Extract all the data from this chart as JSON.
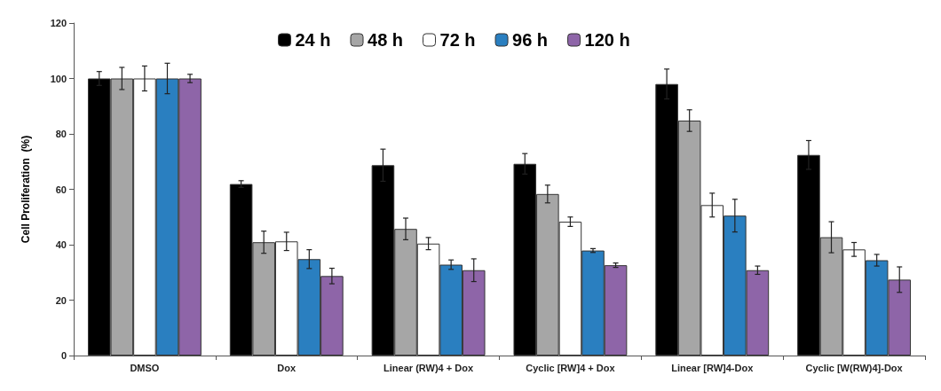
{
  "chart_data": {
    "type": "bar",
    "ylabel": "Cell Proliferation  (%)",
    "categories": [
      "DMSO",
      "Dox",
      "Linear (RW)4 + Dox",
      "Cyclic [RW]4 + Dox",
      "Linear [RW]4-Dox",
      "Cyclic [W(RW)4]-Dox"
    ],
    "ylim": [
      0,
      120
    ],
    "yticks": [
      0,
      20,
      40,
      60,
      80,
      100,
      120
    ],
    "grid": false,
    "legend": "top",
    "series": [
      {
        "name": "24 h",
        "color": "#000000",
        "values": [
          100,
          61.9,
          68.7,
          69.2,
          98.0,
          72.4
        ],
        "errors": [
          2.5,
          1.2,
          5.8,
          3.7,
          5.4,
          5.2
        ]
      },
      {
        "name": "48 h",
        "color": "#a6a6a6",
        "values": [
          100,
          40.9,
          45.7,
          58.3,
          84.8,
          42.7
        ],
        "errors": [
          4,
          4,
          3.9,
          3.2,
          3.9,
          5.6
        ]
      },
      {
        "name": "72 h",
        "color": "#ffffff",
        "values": [
          100,
          41.2,
          40.4,
          48.3,
          54.3,
          38.3
        ],
        "errors": [
          4.5,
          3.3,
          2.2,
          1.7,
          4.3,
          2.5
        ]
      },
      {
        "name": "96 h",
        "color": "#2a7fc0",
        "values": [
          100,
          34.8,
          32.8,
          37.9,
          50.5,
          34.4
        ],
        "errors": [
          5.5,
          3.4,
          1.7,
          0.7,
          5.9,
          2.1
        ]
      },
      {
        "name": "120 h",
        "color": "#8e65a8",
        "values": [
          100,
          28.7,
          30.8,
          32.6,
          30.8,
          27.4
        ],
        "errors": [
          1.5,
          2.8,
          4.1,
          0.8,
          1.5,
          4.6
        ]
      }
    ]
  }
}
